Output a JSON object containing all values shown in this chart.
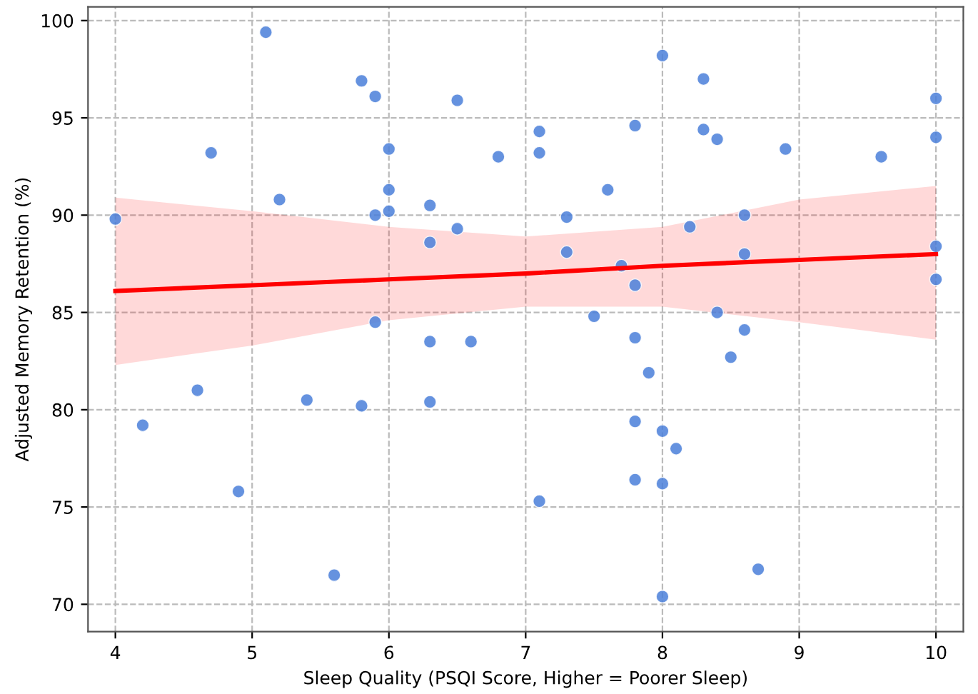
{
  "chart_data": {
    "type": "scatter",
    "xlabel": "Sleep Quality (PSQI Score, Higher = Poorer Sleep)",
    "ylabel": "Adjusted Memory Retention (%)",
    "xlim": [
      3.8,
      10.2
    ],
    "ylim": [
      68.6,
      100.7
    ],
    "xticks": [
      4,
      5,
      6,
      7,
      8,
      9,
      10
    ],
    "yticks": [
      70,
      75,
      80,
      85,
      90,
      95,
      100
    ],
    "grid": true,
    "marker": "circle",
    "series": [
      {
        "color": "#4a7fd9",
        "x": [
          4.0,
          4.2,
          4.6,
          4.7,
          4.9,
          5.1,
          5.2,
          5.4,
          5.6,
          5.8,
          5.8,
          5.9,
          5.9,
          5.9,
          6.0,
          6.0,
          6.0,
          6.3,
          6.3,
          6.3,
          6.3,
          6.5,
          6.5,
          6.6,
          6.8,
          7.1,
          7.1,
          7.1,
          7.3,
          7.3,
          7.5,
          7.6,
          7.7,
          7.8,
          7.8,
          7.8,
          7.8,
          7.8,
          7.9,
          8.0,
          8.0,
          8.0,
          8.0,
          8.1,
          8.2,
          8.3,
          8.3,
          8.4,
          8.4,
          8.5,
          8.6,
          8.6,
          8.6,
          8.7,
          8.9,
          9.6,
          10,
          10,
          10,
          10
        ],
        "values": [
          89.8,
          79.2,
          81.0,
          93.2,
          75.8,
          99.4,
          90.8,
          80.5,
          71.5,
          96.9,
          80.2,
          96.1,
          90.0,
          84.5,
          93.4,
          91.3,
          90.2,
          90.5,
          88.6,
          83.5,
          80.4,
          95.9,
          89.3,
          83.5,
          93.0,
          94.3,
          93.2,
          75.3,
          89.9,
          88.1,
          84.8,
          91.3,
          87.4,
          94.6,
          86.4,
          83.7,
          79.4,
          76.4,
          81.9,
          98.2,
          78.9,
          76.2,
          70.4,
          78.0,
          89.4,
          97.0,
          94.4,
          93.9,
          85.0,
          82.7,
          90.0,
          88.0,
          84.1,
          71.8,
          93.4,
          93.0,
          96.0,
          94.0,
          88.4,
          86.7
        ]
      },
      {
        "type": "line",
        "marker": "none",
        "color": "#ff0000",
        "x": [
          4,
          5,
          6,
          7,
          8,
          9,
          10
        ],
        "values": [
          86.1,
          86.4,
          86.7,
          87.0,
          87.4,
          87.7,
          88.0
        ],
        "lower": [
          82.3,
          83.3,
          84.6,
          85.3,
          85.3,
          84.5,
          83.6
        ],
        "upper": [
          90.9,
          90.2,
          89.4,
          88.9,
          89.4,
          90.8,
          91.5
        ]
      }
    ]
  }
}
